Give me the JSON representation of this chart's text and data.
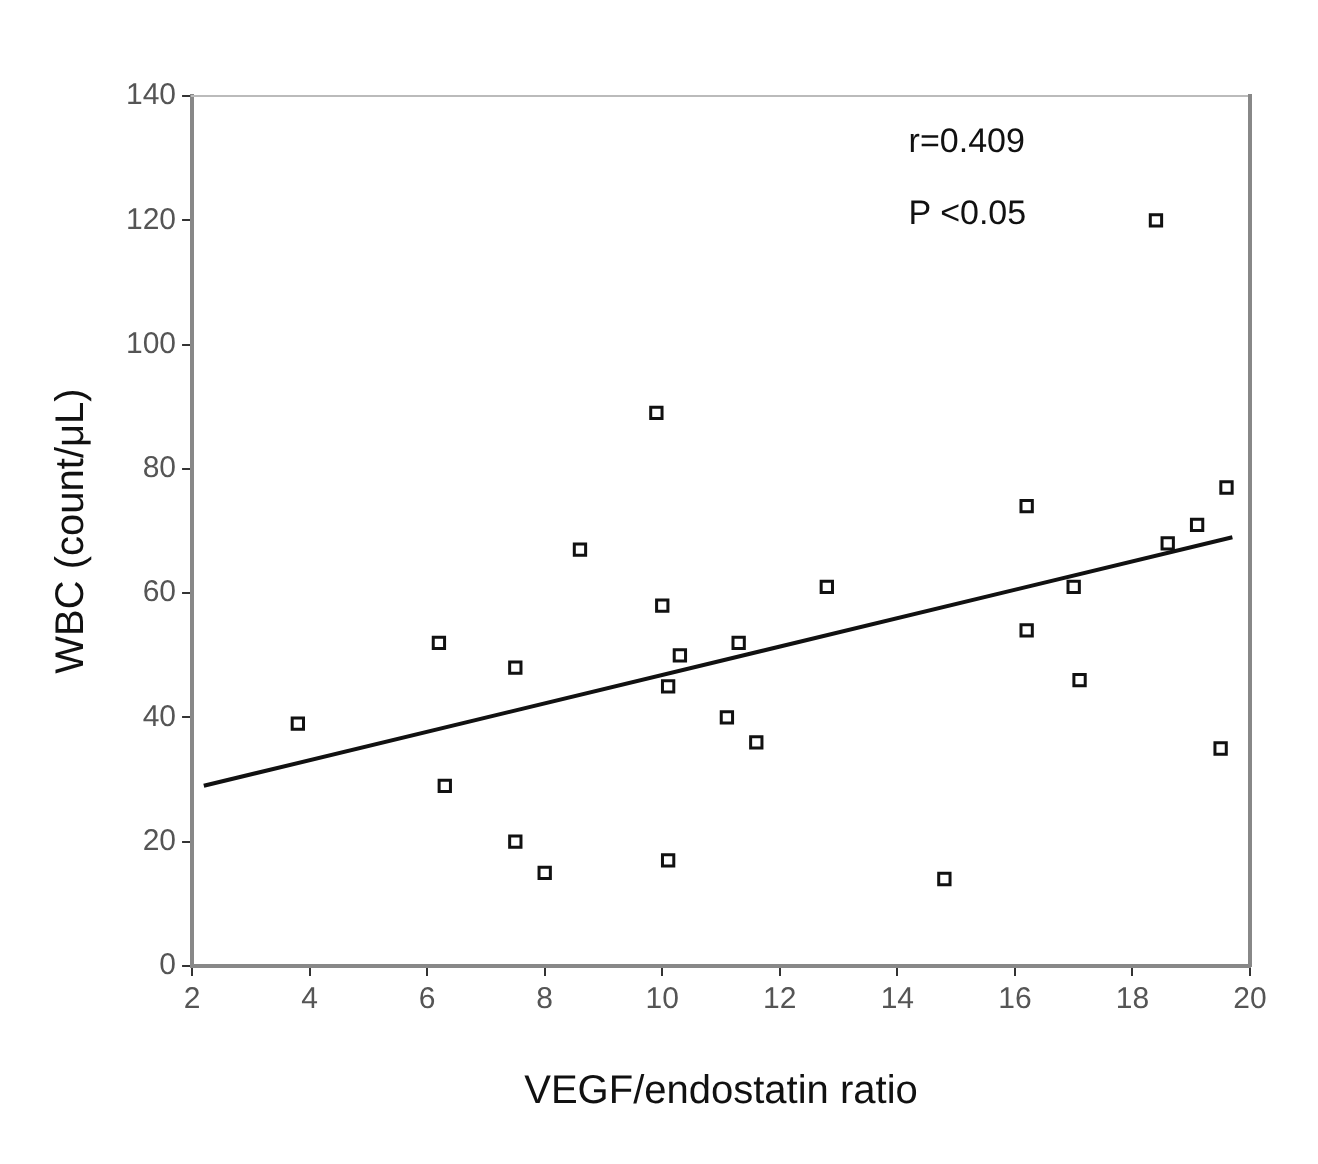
{
  "chart_data": {
    "type": "scatter",
    "xlabel": "VEGF/endostatin ratio",
    "ylabel": "WBC (count/μL)",
    "xlim": [
      2,
      20
    ],
    "xticks": [
      2,
      4,
      6,
      8,
      10,
      12,
      14,
      16,
      18,
      20
    ],
    "ylim": [
      0,
      140
    ],
    "yticks": [
      0,
      20,
      40,
      60,
      80,
      100,
      120,
      140
    ],
    "grid": false,
    "legend": false,
    "marker": "square",
    "annotations": [
      "r=0.409",
      "P <0.05"
    ],
    "series": [
      {
        "color": "#111111",
        "x": [
          3.8,
          6.2,
          6.3,
          7.5,
          7.5,
          8,
          8.6,
          9.9,
          10,
          10.1,
          10.1,
          10.3,
          11.1,
          11.3,
          11.6,
          12.8,
          14.8,
          16.2,
          16.2,
          17,
          17.1,
          18.4,
          18.6,
          19.1,
          19.5,
          19.6
        ],
        "values": [
          39,
          52,
          29,
          48,
          20,
          15,
          67,
          89,
          58,
          45,
          17,
          50,
          40,
          52,
          36,
          61,
          14,
          74,
          54,
          61,
          46,
          120,
          68,
          71,
          35,
          77
        ]
      },
      {
        "type": "line",
        "color": "#111111",
        "marker": "none",
        "x": [
          2.2,
          19.7
        ],
        "values": [
          29,
          69
        ]
      }
    ]
  }
}
